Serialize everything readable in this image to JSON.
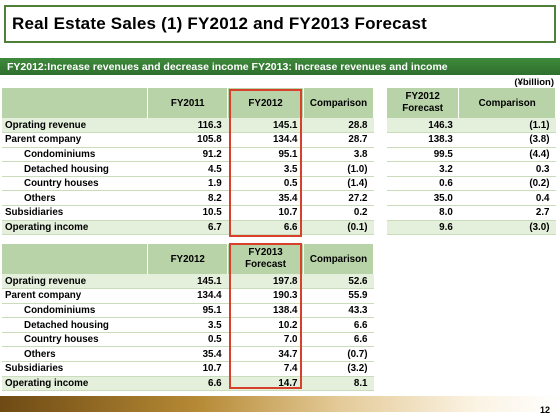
{
  "title": "Real Estate Sales (1) FY2012 and FY2013 Forecast",
  "banner": "FY2012:Increase revenues and decrease income FY2013: Increase revenues and income",
  "unit": "(¥billion)",
  "page": "12",
  "table1": {
    "headers": [
      "",
      "FY2011",
      "FY2012",
      "Comparison"
    ],
    "rows": [
      {
        "label": "Oprating revenue",
        "values": [
          "116.3",
          "145.1",
          "28.8"
        ],
        "indent": false
      },
      {
        "label": "Parent company",
        "values": [
          "105.8",
          "134.4",
          "28.7"
        ],
        "indent": false
      },
      {
        "label": "Condominiums",
        "values": [
          "91.2",
          "95.1",
          "3.8"
        ],
        "indent": true
      },
      {
        "label": "Detached housing",
        "values": [
          "4.5",
          "3.5",
          "(1.0)"
        ],
        "indent": true
      },
      {
        "label": "Country houses",
        "values": [
          "1.9",
          "0.5",
          "(1.4)"
        ],
        "indent": true
      },
      {
        "label": "Others",
        "values": [
          "8.2",
          "35.4",
          "27.2"
        ],
        "indent": true
      },
      {
        "label": "Subsidiaries",
        "values": [
          "10.5",
          "10.7",
          "0.2"
        ],
        "indent": false
      },
      {
        "label": "Operating income",
        "values": [
          "6.7",
          "6.6",
          "(0.1)"
        ],
        "indent": false
      }
    ]
  },
  "table2": {
    "headers": [
      "FY2012 Forecast",
      "Comparison"
    ],
    "rows": [
      [
        "146.3",
        "(1.1)"
      ],
      [
        "138.3",
        "(3.8)"
      ],
      [
        "99.5",
        "(4.4)"
      ],
      [
        "3.2",
        "0.3"
      ],
      [
        "0.6",
        "(0.2)"
      ],
      [
        "35.0",
        "0.4"
      ],
      [
        "8.0",
        "2.7"
      ],
      [
        "9.6",
        "(3.0)"
      ]
    ]
  },
  "table3": {
    "headers": [
      "",
      "FY2012",
      "FY2013 Forecast",
      "Comparison"
    ],
    "rows": [
      {
        "label": "Oprating revenue",
        "values": [
          "145.1",
          "197.8",
          "52.6"
        ],
        "indent": false
      },
      {
        "label": "Parent company",
        "values": [
          "134.4",
          "190.3",
          "55.9"
        ],
        "indent": false
      },
      {
        "label": "Condominiums",
        "values": [
          "95.1",
          "138.4",
          "43.3"
        ],
        "indent": true
      },
      {
        "label": "Detached housing",
        "values": [
          "3.5",
          "10.2",
          "6.6"
        ],
        "indent": true
      },
      {
        "label": "Country houses",
        "values": [
          "0.5",
          "7.0",
          "6.6"
        ],
        "indent": true
      },
      {
        "label": "Others",
        "values": [
          "35.4",
          "34.7",
          "(0.7)"
        ],
        "indent": true
      },
      {
        "label": "Subsidiaries",
        "values": [
          "10.7",
          "7.4",
          "(3.2)"
        ],
        "indent": false
      },
      {
        "label": "Operating income",
        "values": [
          "6.6",
          "14.7",
          "8.1"
        ],
        "indent": false
      }
    ]
  },
  "colors": {
    "header_bg": "#b9d3a9",
    "alt_row_bg": "#e4efdc",
    "banner_bg": "#3e8a3c",
    "highlight_border": "#d8402b",
    "title_border": "#4f7f3a"
  }
}
